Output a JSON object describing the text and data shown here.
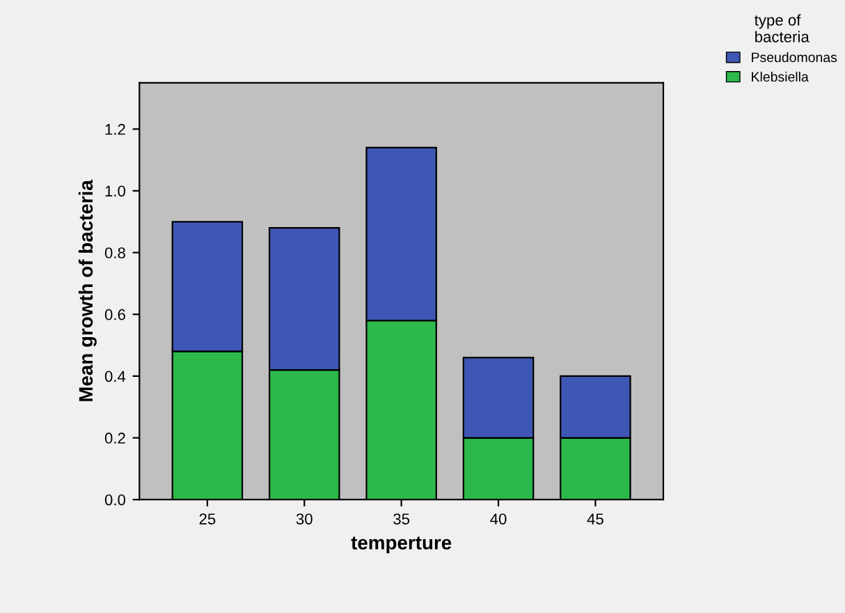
{
  "chart_data": {
    "type": "bar",
    "stacked": true,
    "xlabel": "temperture",
    "ylabel": "Mean growth of bacteria",
    "legend_title": "type of\nbacteria",
    "legend": "top right",
    "grid": false,
    "categories": [
      "25",
      "30",
      "35",
      "40",
      "45"
    ],
    "series": [
      {
        "name": "Klebsiella",
        "color": "#2db84b",
        "values": [
          0.48,
          0.42,
          0.58,
          0.2,
          0.2
        ]
      },
      {
        "name": "Pseudomonas",
        "color": "#3f57b4",
        "values": [
          0.42,
          0.46,
          0.56,
          0.26,
          0.2
        ]
      }
    ],
    "ylim": [
      0,
      1.35
    ],
    "yticks": [
      {
        "value": 0,
        "label": "0.0"
      },
      {
        "value": 0.2,
        "label": "0.2"
      },
      {
        "value": 0.4,
        "label": "0.4"
      },
      {
        "value": 0.6,
        "label": "0.6"
      },
      {
        "value": 0.8,
        "label": "0.8"
      },
      {
        "value": 1.0,
        "label": "1.0"
      },
      {
        "value": 1.2,
        "label": "1.2"
      }
    ]
  }
}
